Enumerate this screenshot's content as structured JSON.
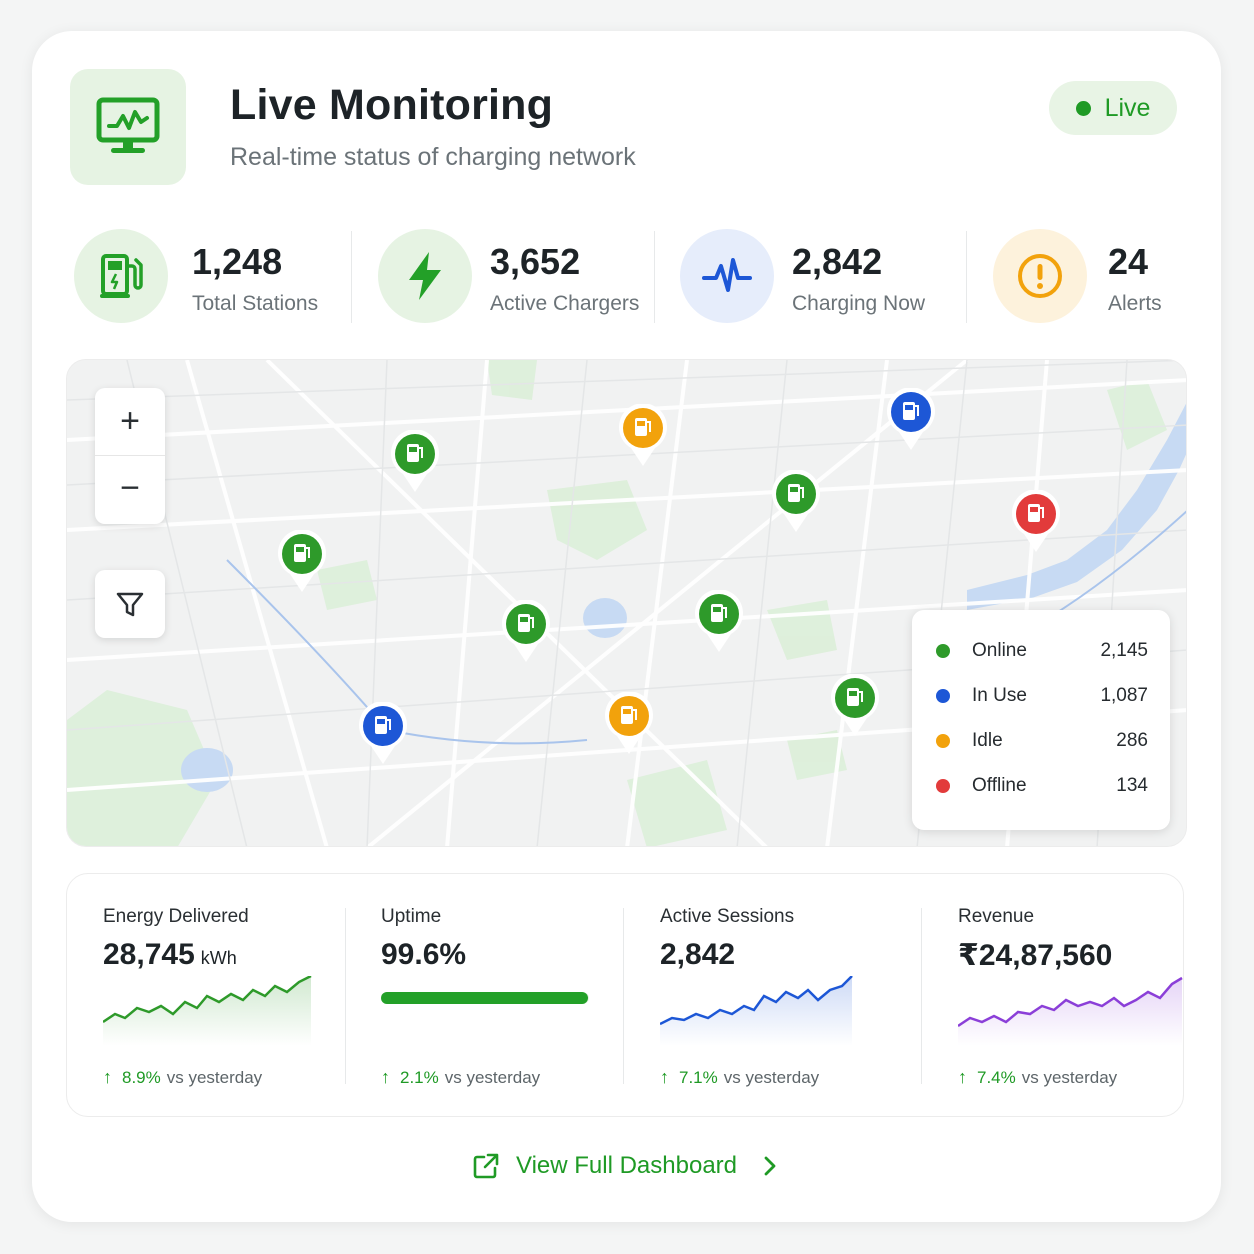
{
  "header": {
    "title": "Live Monitoring",
    "subtitle": "Real-time status of charging network",
    "icon": "monitor-chart-icon",
    "live_label": "Live"
  },
  "stats": [
    {
      "value": "1,248",
      "label": "Total Stations",
      "icon": "fuel-station-icon"
    },
    {
      "value": "3,652",
      "label": "Active Chargers",
      "icon": "lightning-icon"
    },
    {
      "value": "2,842",
      "label": "Charging Now",
      "icon": "pulse-icon"
    },
    {
      "value": "24",
      "label": "Alerts",
      "icon": "alert-circle-icon"
    }
  ],
  "map": {
    "controls": {
      "zoom_in": "+",
      "zoom_out": "−",
      "filter_icon": "filter-icon"
    },
    "legend": [
      {
        "label": "Online",
        "count": "2,145",
        "color": "#2e9a2a"
      },
      {
        "label": "In Use",
        "count": "1,087",
        "color": "#1d57d6"
      },
      {
        "label": "Idle",
        "count": "286",
        "color": "#f2a20c"
      },
      {
        "label": "Offline",
        "count": "134",
        "color": "#e23b3b"
      }
    ]
  },
  "metrics": [
    {
      "label": "Energy Delivered",
      "value": "28,745",
      "unit": "kWh",
      "delta": "8.9%",
      "delta_suffix": "vs yesterday",
      "color": "#2e9a2a"
    },
    {
      "label": "Uptime",
      "value": "99.6%",
      "unit": "",
      "delta": "2.1%",
      "delta_suffix": "vs yesterday",
      "progress": 0.996
    },
    {
      "label": "Active Sessions",
      "value": "2,842",
      "unit": "",
      "delta": "7.1%",
      "delta_suffix": "vs yesterday",
      "color": "#1d57d6"
    },
    {
      "label": "Revenue",
      "value": "₹24,87,560",
      "unit": "",
      "delta": "7.4%",
      "delta_suffix": "vs yesterday",
      "color": "#8b3fd8"
    }
  ],
  "footer": {
    "link_label": "View Full Dashboard",
    "icon": "external-link-icon"
  }
}
